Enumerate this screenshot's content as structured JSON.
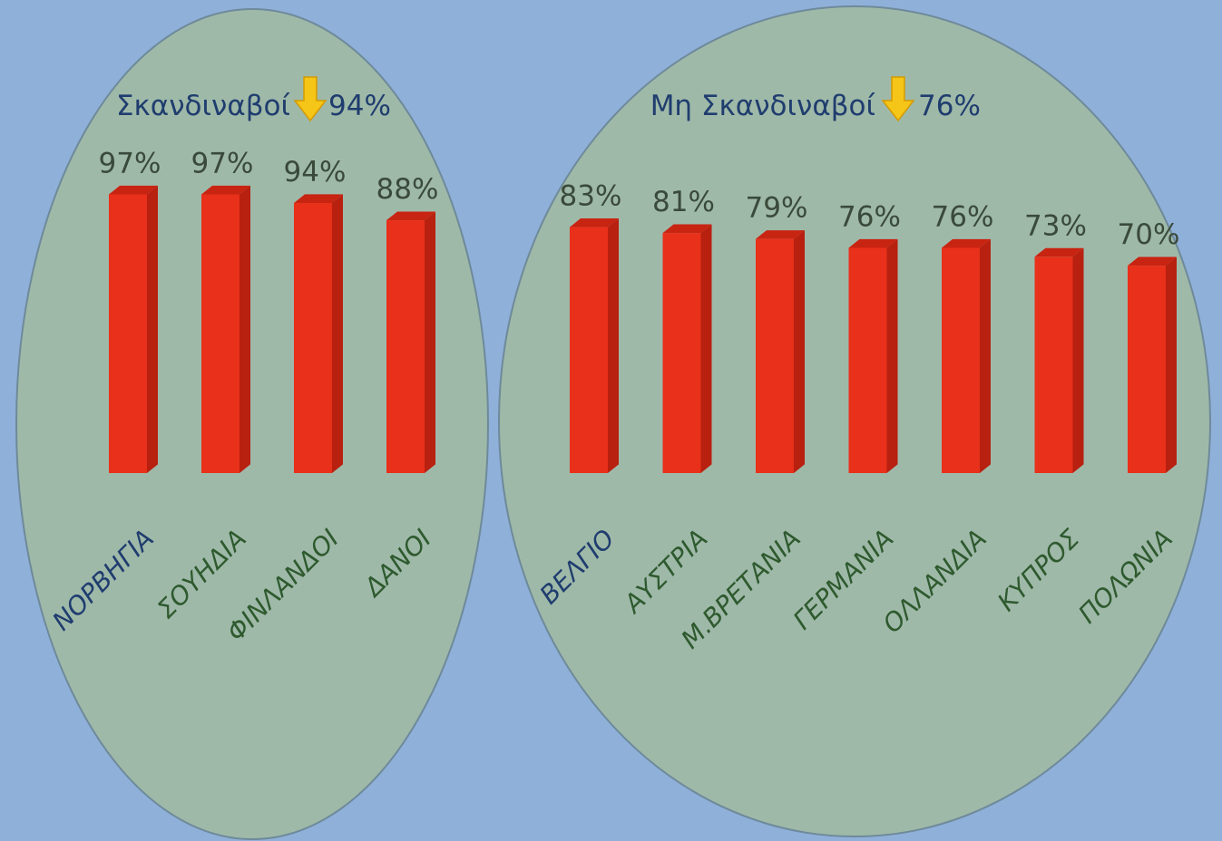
{
  "colors": {
    "background": "#8fb0d9",
    "ellipse_fill": "#9fb9a9",
    "ellipse_stroke": "#6e8a9a",
    "bar_front": "#e8301a",
    "bar_side": "#b82010",
    "bar_top": "#c82412",
    "arrow": "#f5c518",
    "arrow_stroke": "#d49a00",
    "title_text": "#1f3d6e",
    "value_text": "#3a4a3a",
    "label_green": "#2e5a2e",
    "label_navy": "#1f3d6e"
  },
  "chart_data": [
    {
      "type": "bar",
      "title": "Σκανδιναβοί",
      "summary_value": "94%",
      "indicator_icon": "down-arrow-icon",
      "categories": [
        "ΝΟΡΒΗΓΙΑ",
        "ΣΟΥΗΔΙΑ",
        "ΦΙΝΛΑΝΔΟΙ",
        "ΔΑΝΟΙ"
      ],
      "values": [
        97,
        97,
        94,
        88
      ],
      "value_labels": [
        "97%",
        "97%",
        "94%",
        "88%"
      ],
      "ylim": [
        0,
        100
      ],
      "grid": false,
      "label_color_keys": [
        "label_navy",
        "label_green",
        "label_green",
        "label_green"
      ]
    },
    {
      "type": "bar",
      "title": "Μη Σκανδιναβοί",
      "summary_value": "76%",
      "indicator_icon": "down-arrow-icon",
      "categories": [
        "ΒΕΛΓΙΟ",
        "ΑΥΣΤΡΙΑ",
        "Μ.ΒΡΕΤΑΝΙΑ",
        "ΓΕΡΜΑΝΙΑ",
        "ΟΛΛΑΝΔΙΑ",
        "ΚΥΠΡΟΣ",
        "ΠΟΛΩΝΙΑ"
      ],
      "values": [
        83,
        81,
        79,
        76,
        76,
        73,
        70
      ],
      "value_labels": [
        "83%",
        "81%",
        "79%",
        "76%",
        "76%",
        "73%",
        "70%"
      ],
      "ylim": [
        0,
        100
      ],
      "grid": false,
      "label_color_keys": [
        "label_navy",
        "label_green",
        "label_green",
        "label_green",
        "label_green",
        "label_green",
        "label_green"
      ]
    }
  ]
}
